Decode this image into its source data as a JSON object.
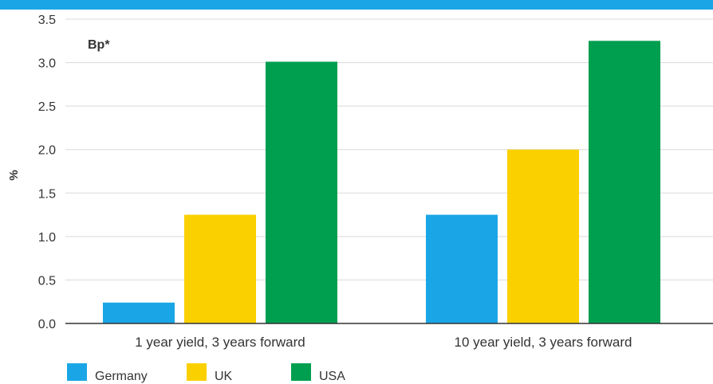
{
  "chart_data": {
    "type": "bar",
    "annotation": "Bp*",
    "ylabel": "%",
    "xlabel": "",
    "ylim": [
      0,
      3.5
    ],
    "yticks": [
      "0.0",
      "0.5",
      "1.0",
      "1.5",
      "2.0",
      "2.5",
      "3.0",
      "3.5"
    ],
    "categories": [
      "1 year yield, 3 years forward",
      "10 year yield, 3 years forward"
    ],
    "series": [
      {
        "name": "Germany",
        "values": [
          0.24,
          1.25
        ],
        "color": "#1aa6e6"
      },
      {
        "name": "UK",
        "values": [
          1.25,
          2.0
        ],
        "color": "#fbd000"
      },
      {
        "name": "USA",
        "values": [
          3.01,
          3.25
        ],
        "color": "#009e4f"
      }
    ],
    "grid": true,
    "legend_position": "bottom-left",
    "colors": {
      "top_bar": "#1aa6e6",
      "grid": "#d9d9d9",
      "axis": "#333333"
    }
  }
}
